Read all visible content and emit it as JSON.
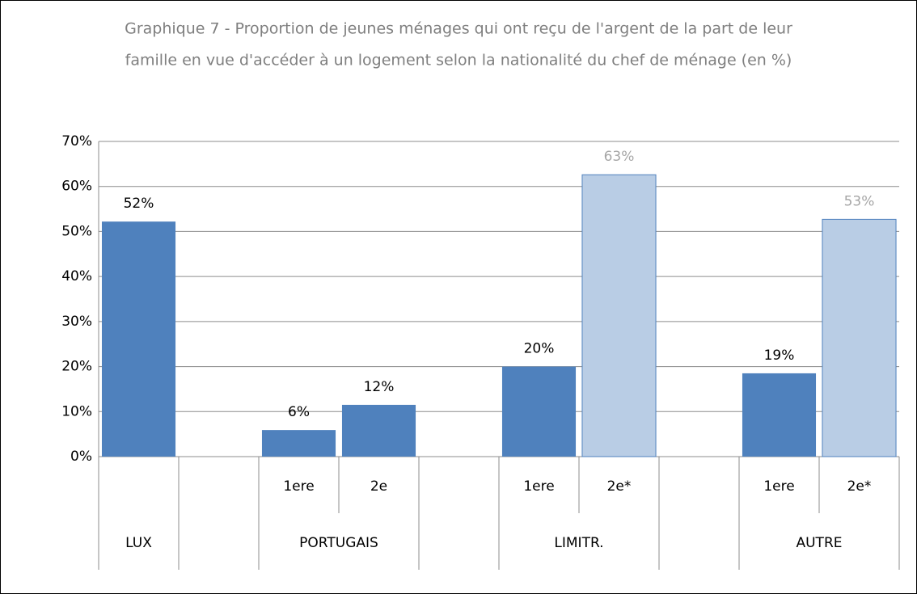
{
  "chart_data": {
    "type": "bar",
    "title_lines": [
      "Graphique 7 - Proportion de jeunes ménages qui ont reçu de l'argent de la part de leur",
      "famille en vue d'accéder à un logement selon la nationalité du chef de ménage (en %)"
    ],
    "categories": [
      null,
      null,
      "1ere",
      "2e",
      null,
      "1ere",
      "2e*",
      null,
      "1ere",
      "2e*"
    ],
    "groups": [
      {
        "name": "LUX",
        "size": 1
      },
      {
        "name": null,
        "size": 1
      },
      {
        "name": "PORTUGAIS",
        "size": 2
      },
      {
        "name": null,
        "size": 1
      },
      {
        "name": "LIMITR.",
        "size": 2
      },
      {
        "name": null,
        "size": 1
      },
      {
        "name": "AUTRE",
        "size": 2
      }
    ],
    "values": [
      52.2,
      null,
      5.9,
      11.5,
      null,
      20.0,
      62.6,
      null,
      18.5,
      52.7
    ],
    "value_labels": [
      "52%",
      null,
      "6%",
      "12%",
      null,
      "20%",
      "63%",
      null,
      "19%",
      "53%"
    ],
    "colors": [
      "#4f81bd",
      null,
      "#4f81bd",
      "#4f81bd",
      null,
      "#4f81bd",
      "#b9cde5",
      null,
      "#4f81bd",
      "#b9cde5"
    ],
    "ylim": [
      0,
      70
    ],
    "yticks": [
      {
        "value": 0,
        "label": "0%"
      },
      {
        "value": 10,
        "label": "10%"
      },
      {
        "value": 20,
        "label": "20%"
      },
      {
        "value": 30,
        "label": "30%"
      },
      {
        "value": 40,
        "label": "40%"
      },
      {
        "value": 50,
        "label": "50%"
      },
      {
        "value": 60,
        "label": "60%"
      },
      {
        "value": 70,
        "label": "70%"
      }
    ],
    "grid": true
  }
}
